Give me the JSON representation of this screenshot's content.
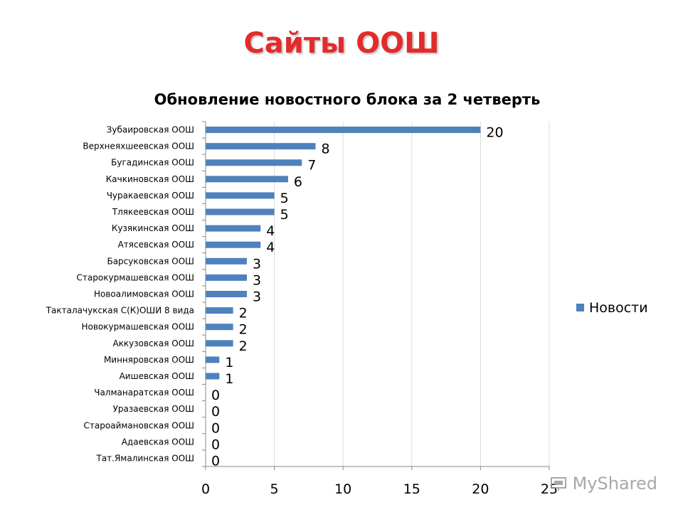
{
  "slide": {
    "title": "Сайты ООШ"
  },
  "watermark": {
    "text": "MyShared"
  },
  "colors": {
    "title": "#e32b2b",
    "bar": "#4f81bd",
    "grid": "#d9d9d9"
  },
  "chart_data": {
    "type": "bar",
    "orientation": "horizontal",
    "title": "Обновление новостного блока за 2 четверть",
    "categories": [
      "Зубаировская ООШ",
      "Верхнеяхшеевская ООШ",
      "Бугадинская ООШ",
      "Качкиновская ООШ",
      "Чуракаевская ООШ",
      "Тлякеевская ООШ",
      "Кузякинская ООШ",
      "Атясевская ООШ",
      "Барсуковская ООШ",
      "Старокурмашевская ООШ",
      "Новоалимовская ООШ",
      "Такталачукская С(К)ОШИ 8 вида",
      "Новокурмашевская ООШ",
      "Аккузовская ООШ",
      "Минняровская ООШ",
      "Аишевская ООШ",
      "Чалманаратская ООШ",
      "Уразаевская ООШ",
      "Староаймановская ООШ",
      "Адаевская ООШ",
      "Тат.Ямалинская ООШ"
    ],
    "series": [
      {
        "name": "Новости",
        "values": [
          20,
          8,
          7,
          6,
          5,
          5,
          4,
          4,
          3,
          3,
          3,
          2,
          2,
          2,
          1,
          1,
          0,
          0,
          0,
          0,
          0
        ]
      }
    ],
    "xlim": [
      0,
      25
    ],
    "xticks": [
      "0",
      "5",
      "10",
      "15",
      "20",
      "25"
    ],
    "grid": true,
    "legend": "right"
  }
}
